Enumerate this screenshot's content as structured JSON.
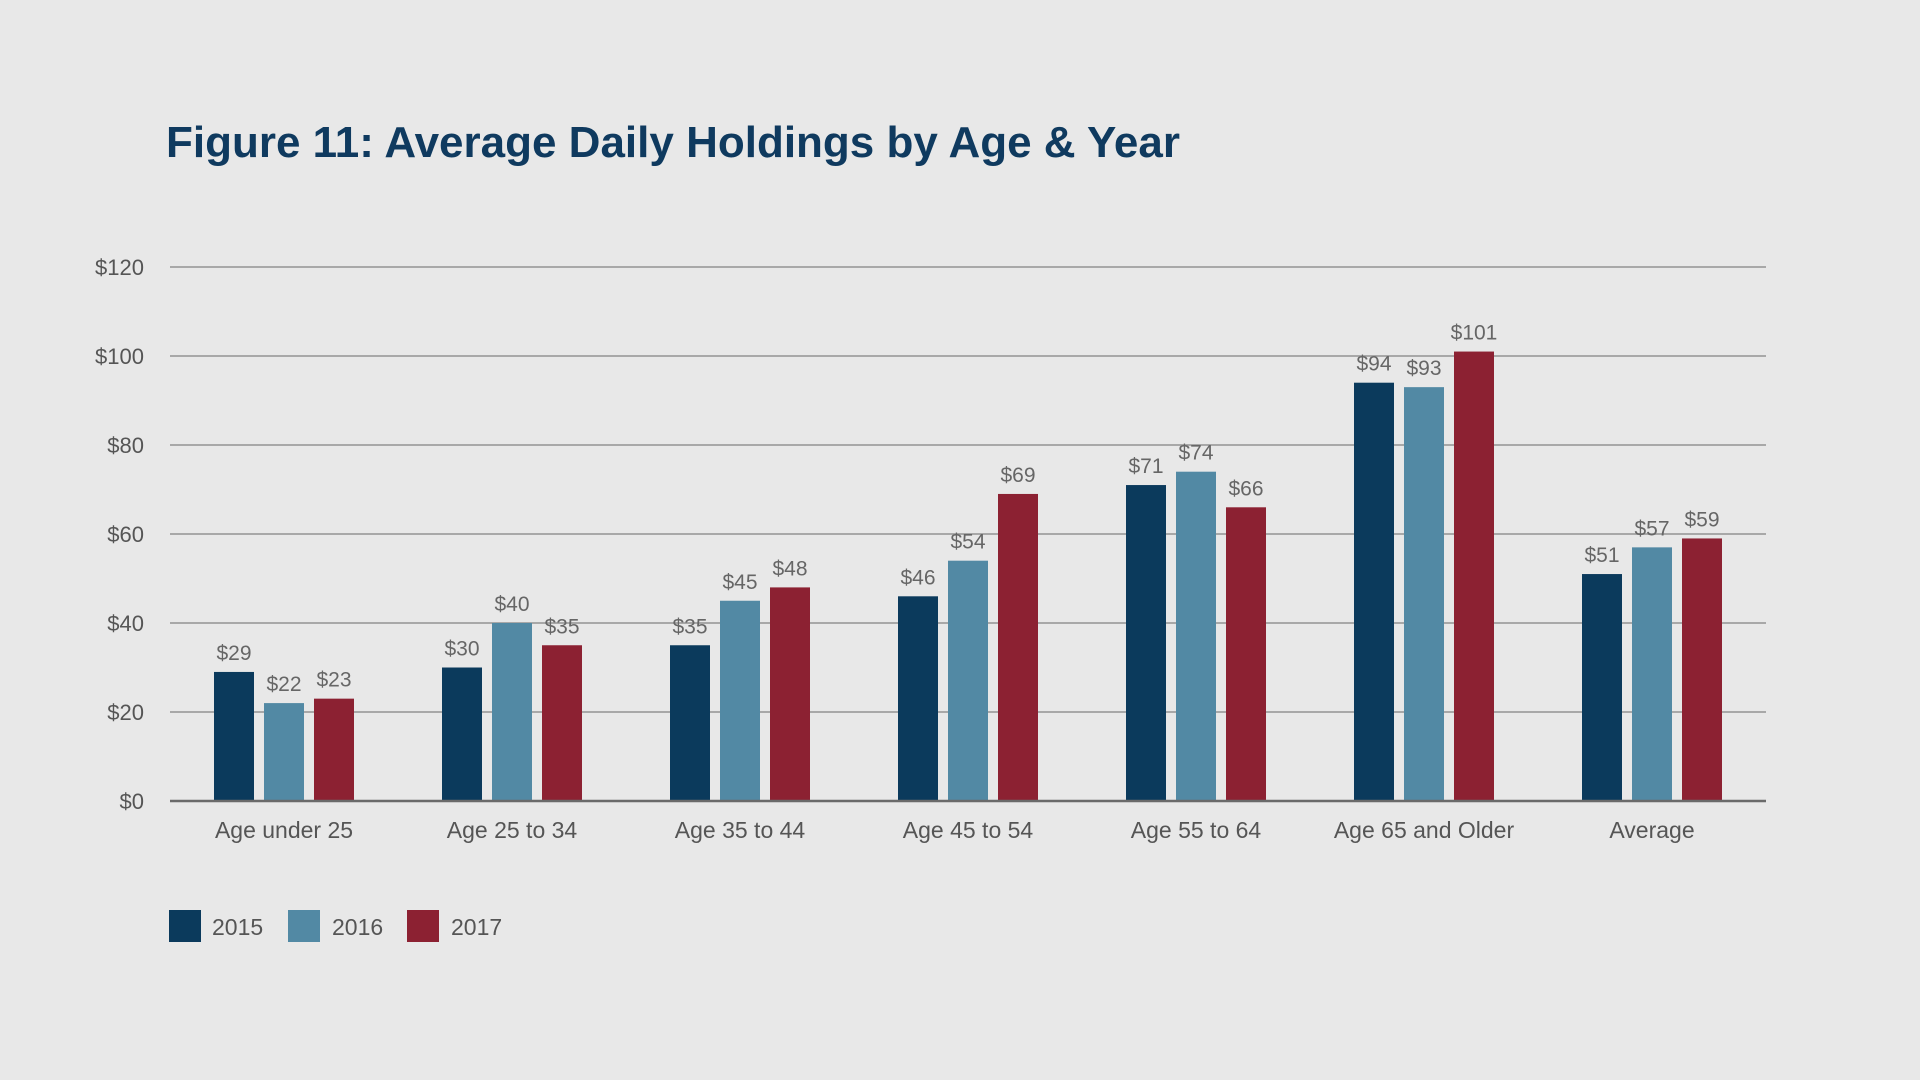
{
  "colors": {
    "background": "#e8e8e8",
    "title": "#0f3a5f",
    "gridline": "#a8a8a8",
    "axis": "#6a6a6a",
    "text": "#555555"
  },
  "chart_data": {
    "type": "bar",
    "title": "Figure 11: Average Daily Holdings by Age & Year",
    "xlabel": "",
    "ylabel": "",
    "ylim": [
      0,
      120
    ],
    "y_ticks": [
      0,
      20,
      40,
      60,
      80,
      100,
      120
    ],
    "y_tick_labels": [
      "$0",
      "$20",
      "$40",
      "$60",
      "$80",
      "$100",
      "$120"
    ],
    "grid": true,
    "legend_position": "bottom-left",
    "categories": [
      "Age under 25",
      "Age 25 to 34",
      "Age 35 to 44",
      "Age 45 to 54",
      "Age 55 to 64",
      "Age 65 and Older",
      "Average"
    ],
    "series": [
      {
        "name": "2015",
        "color": "#0b3a5c",
        "values": [
          29,
          30,
          35,
          46,
          71,
          94,
          51
        ],
        "labels": [
          "$29",
          "$30",
          "$35",
          "$46",
          "$71",
          "$94",
          "$51"
        ]
      },
      {
        "name": "2016",
        "color": "#5289a4",
        "values": [
          22,
          40,
          45,
          54,
          74,
          93,
          57
        ],
        "labels": [
          "$22",
          "$40",
          "$45",
          "$54",
          "$74",
          "$93",
          "$57"
        ]
      },
      {
        "name": "2017",
        "color": "#8c2132",
        "values": [
          23,
          35,
          48,
          69,
          66,
          101,
          59
        ],
        "labels": [
          "$23",
          "$35",
          "$48",
          "$69",
          "$66",
          "$101",
          "$59"
        ]
      }
    ]
  }
}
